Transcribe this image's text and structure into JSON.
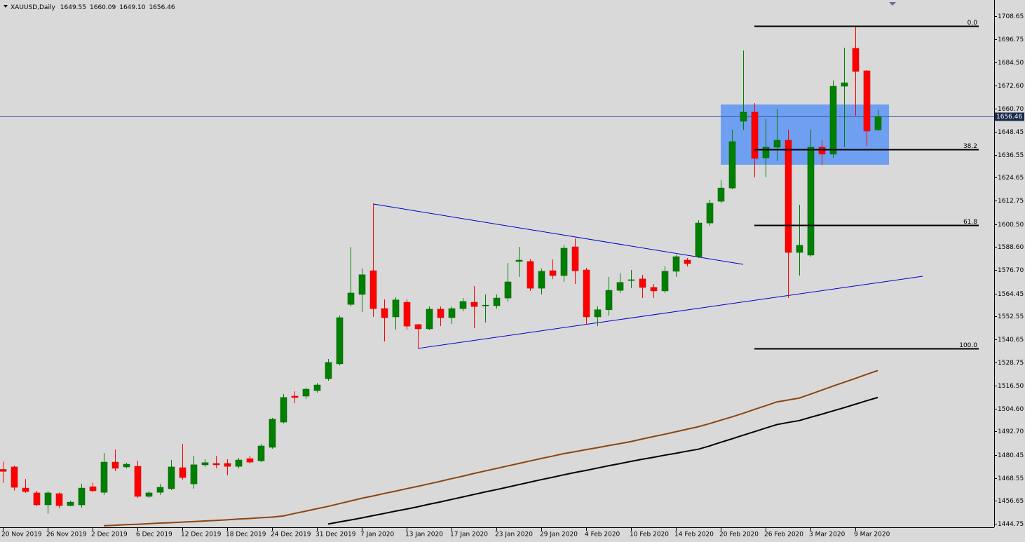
{
  "chart_data": {
    "type": "candlestick",
    "title": "XAUUSD,Daily",
    "ohlc_labels": [
      "1649.55",
      "1660.09",
      "1649.10",
      "1656.46"
    ],
    "categories": [
      "20 Nov 2019",
      null,
      null,
      null,
      "26 Nov 2019",
      null,
      null,
      null,
      "2 Dec 2019",
      null,
      null,
      null,
      "6 Dec 2019",
      null,
      null,
      null,
      "12 Dec 2019",
      null,
      null,
      null,
      "18 Dec 2019",
      null,
      null,
      null,
      "24 Dec 2019",
      null,
      null,
      null,
      "31 Dec 2019",
      null,
      null,
      null,
      "7 Jan 2020",
      null,
      null,
      null,
      "13 Jan 2020",
      null,
      null,
      null,
      "17 Jan 2020",
      null,
      null,
      null,
      "23 Jan 2020",
      null,
      null,
      null,
      "29 Jan 2020",
      null,
      null,
      null,
      "4 Feb 2020",
      null,
      null,
      null,
      "10 Feb 2020",
      null,
      null,
      null,
      "14 Feb 2020",
      null,
      null,
      null,
      "20 Feb 2020",
      null,
      null,
      null,
      "26 Feb 2020",
      null,
      null,
      null,
      "3 Mar 2020",
      null,
      null,
      null,
      "9 Mar 2020",
      null,
      null
    ],
    "open": [
      1473,
      1474.3,
      1463.3,
      1460.8,
      1454.6,
      1460.4,
      1454.2,
      1454.6,
      1464.0,
      1461.1,
      1476.8,
      1474.3,
      1474.6,
      1459.0,
      1461.1,
      1463.0,
      1473.9,
      1465.5,
      1475.4,
      1476.1,
      1476.1,
      1474.6,
      1478.6,
      1477.5,
      1484.5,
      1497.6,
      1511.1,
      1511.1,
      1514.0,
      1520.2,
      1527.9,
      1558.8,
      1564.0,
      1576.3,
      1556.6,
      1552.3,
      1559.9,
      1548.3,
      1546.1,
      1556.3,
      1551.9,
      1556.6,
      1559.9,
      1558.1,
      1558.1,
      1562.1,
      1581.1,
      1581.1,
      1567.2,
      1576.3,
      1573.8,
      1588.7,
      1576.7,
      1552.3,
      1556.0,
      1566.1,
      1571.3,
      1572.0,
      1567.6,
      1565.8,
      1576.0,
      1581.8,
      1583.6,
      1601.1,
      1612.4,
      1619.3,
      1654.0,
      1658.7,
      1635.0,
      1640.5,
      1644.1,
      1585.8,
      1584.4,
      1640.5,
      1636.9,
      1672.2,
      1691.9,
      1680.2,
      1649.55
    ],
    "high": [
      1477,
      1475,
      1468,
      1461.9,
      1461.9,
      1461.1,
      1456.8,
      1465.5,
      1466.2,
      1481.5,
      1483.3,
      1476.5,
      1477.5,
      1461.9,
      1465.5,
      1477.9,
      1486.3,
      1480.1,
      1478.3,
      1480.1,
      1478.3,
      1479.0,
      1480.1,
      1486.3,
      1499.8,
      1512.2,
      1513.6,
      1515.5,
      1518.0,
      1530.4,
      1553.0,
      1588.7,
      1577.4,
      1611.0,
      1561.4,
      1562.5,
      1561.4,
      1548.6,
      1557.7,
      1557.7,
      1557.7,
      1562.1,
      1568.3,
      1564.0,
      1564.0,
      1580.3,
      1588.7,
      1582.2,
      1577.4,
      1582.2,
      1589.8,
      1593.1,
      1577.8,
      1557.7,
      1573.1,
      1574.9,
      1576.7,
      1574.2,
      1569.4,
      1578.5,
      1584.4,
      1582.9,
      1602.6,
      1613.2,
      1623.3,
      1649.6,
      1690.8,
      1663.4,
      1655.1,
      1660.5,
      1649.6,
      1610.6,
      1649.6,
      1644.1,
      1675.2,
      1692.2,
      1703.5,
      1680.6,
      1660.09
    ],
    "low": [
      1466,
      1462,
      1460.8,
      1453.9,
      1449.9,
      1452.8,
      1453.9,
      1453.2,
      1461.1,
      1459.7,
      1472.1,
      1473.6,
      1458.2,
      1458.2,
      1459.7,
      1462.3,
      1467.7,
      1463.0,
      1474.3,
      1473.6,
      1469.9,
      1473.6,
      1476.1,
      1476.8,
      1483.8,
      1496.9,
      1507.4,
      1509.6,
      1512.9,
      1519.1,
      1527.1,
      1557.7,
      1554.8,
      1552.3,
      1539.5,
      1545.7,
      1545.7,
      1535.9,
      1545.4,
      1547.5,
      1548.6,
      1555.2,
      1546.4,
      1549.4,
      1556.6,
      1560.3,
      1573.1,
      1565.8,
      1564.0,
      1571.9,
      1570.5,
      1569.4,
      1548.3,
      1547.5,
      1553.0,
      1564.7,
      1567.2,
      1562.1,
      1562.1,
      1564.7,
      1573.1,
      1578.5,
      1582.9,
      1599.7,
      1611.4,
      1618.6,
      1649.6,
      1624.8,
      1624.8,
      1633.2,
      1562.1,
      1573.8,
      1583.6,
      1631.0,
      1635.0,
      1640.5,
      1656.9,
      1641.2,
      1649.1
    ],
    "close": [
      1472,
      1463.7,
      1461.5,
      1454.6,
      1460.8,
      1454.2,
      1456.0,
      1463.3,
      1461.9,
      1476.8,
      1473.6,
      1475.7,
      1459.0,
      1460.8,
      1463.7,
      1474.3,
      1468.8,
      1475.4,
      1476.5,
      1475.4,
      1474.6,
      1477.9,
      1476.8,
      1485.2,
      1499.1,
      1510.4,
      1510.4,
      1514.7,
      1516.9,
      1528.6,
      1551.9,
      1564.7,
      1574.2,
      1556.6,
      1551.9,
      1561.1,
      1547.5,
      1546.1,
      1556.3,
      1551.9,
      1556.6,
      1560.3,
      1557.7,
      1558.4,
      1562.1,
      1570.5,
      1581.8,
      1567.2,
      1576.0,
      1573.8,
      1588.0,
      1576.3,
      1552.3,
      1556.0,
      1566.1,
      1570.2,
      1571.6,
      1567.6,
      1565.8,
      1576.0,
      1583.6,
      1580.0,
      1601.1,
      1611.4,
      1619.3,
      1643.4,
      1658.7,
      1634.7,
      1640.5,
      1644.1,
      1585.8,
      1589.5,
      1640.5,
      1636.9,
      1672.2,
      1674.0,
      1679.9,
      1648.9,
      1656.46
    ],
    "up_color": "#008000",
    "down_color": "#ff0000",
    "series": [
      {
        "color": "#8b4513",
        "values": [
          null,
          null,
          null,
          null,
          null,
          null,
          null,
          null,
          null,
          1443.7,
          1444.0,
          1444.3,
          1444.5,
          1444.8,
          1445.1,
          1445.3,
          1445.6,
          1445.9,
          1446.2,
          1446.5,
          1446.8,
          1447.2,
          1447.5,
          1447.9,
          1448.2,
          1448.8,
          1450.1,
          1451.3,
          1452.6,
          1453.8,
          1455.2,
          1456.6,
          1458.0,
          1459.2,
          1460.5,
          1461.7,
          1463.0,
          1464.2,
          1465.5,
          1466.8,
          1468.2,
          1469.5,
          1470.9,
          1472.2,
          1473.5,
          1474.8,
          1476.1,
          1477.4,
          1478.7,
          1479.9,
          1481.2,
          1482.2,
          1483.3,
          1484.3,
          1485.4,
          1486.4,
          1487.5,
          1488.8,
          1490.1,
          1491.3,
          1492.6,
          1493.9,
          1495.2,
          1496.8,
          1498.6,
          1500.3,
          1502.2,
          1504.2,
          1506.1,
          1508.1,
          1509.1,
          1510.1,
          1512.1,
          1514.2,
          1516.3,
          1518.3,
          1520.3,
          1522.4,
          1524.4
        ]
      },
      {
        "color": "#000000",
        "values": [
          null,
          null,
          null,
          null,
          null,
          null,
          null,
          null,
          null,
          null,
          null,
          null,
          null,
          null,
          null,
          null,
          null,
          null,
          null,
          null,
          null,
          null,
          null,
          null,
          null,
          null,
          null,
          null,
          null,
          1444.6,
          1445.7,
          1446.7,
          1447.8,
          1449.0,
          1450.1,
          1451.3,
          1452.4,
          1453.6,
          1454.9,
          1456.1,
          1457.4,
          1458.7,
          1460.0,
          1461.3,
          1462.5,
          1463.8,
          1465.1,
          1466.4,
          1467.7,
          1468.9,
          1470.2,
          1471.4,
          1472.5,
          1473.7,
          1474.9,
          1476.0,
          1477.2,
          1478.3,
          1479.3,
          1480.4,
          1481.4,
          1482.5,
          1483.5,
          1485.2,
          1487.1,
          1488.9,
          1490.8,
          1492.6,
          1494.5,
          1496.3,
          1497.4,
          1498.4,
          1500.1,
          1501.7,
          1503.4,
          1505.1,
          1506.9,
          1508.7,
          1510.4
        ]
      }
    ],
    "trendlines": [
      {
        "x": [
          33,
          66
        ],
        "y": [
          1611.0,
          1579.6
        ]
      },
      {
        "x": [
          37,
          82
        ],
        "y": [
          1535.9,
          1573.4
        ]
      }
    ],
    "trendline_color": "#0000cd",
    "rectangle": {
      "x": [
        64,
        79
      ],
      "y": [
        1631.4,
        1662.7
      ],
      "color": "#6f9ff0"
    },
    "fibonacci": {
      "x": [
        67,
        87
      ],
      "color": "#000000",
      "levels": [
        {
          "label": "0.0",
          "value": 1703.5
        },
        {
          "label": "38.2",
          "value": 1639.4
        },
        {
          "label": "61.8",
          "value": 1600.0
        },
        {
          "label": "100.0",
          "value": 1535.9
        }
      ]
    },
    "price_line_color": "#4a5fa8",
    "ylim": [
      1442.93,
      1717.03
    ],
    "yticks": [
      1708.65,
      1696.75,
      {
        "value": 1684.5,
        "label": "1684.50"
      },
      {
        "value": 1672.6,
        "label": "1672.60"
      },
      {
        "value": 1660.7,
        "label": "1660.70"
      },
      1648.45,
      1636.55,
      1624.65,
      1612.75,
      {
        "value": 1600.5,
        "label": "1600.50"
      },
      {
        "value": 1588.6,
        "label": "1588.60"
      },
      {
        "value": 1576.7,
        "label": "1576.70"
      },
      1564.45,
      1552.55,
      1540.65,
      1528.75,
      {
        "value": 1516.5,
        "label": "1516.50"
      },
      {
        "value": 1504.6,
        "label": "1504.60"
      },
      {
        "value": 1492.7,
        "label": "1492.70"
      },
      1480.45,
      1468.55,
      1456.65,
      1444.75
    ]
  }
}
